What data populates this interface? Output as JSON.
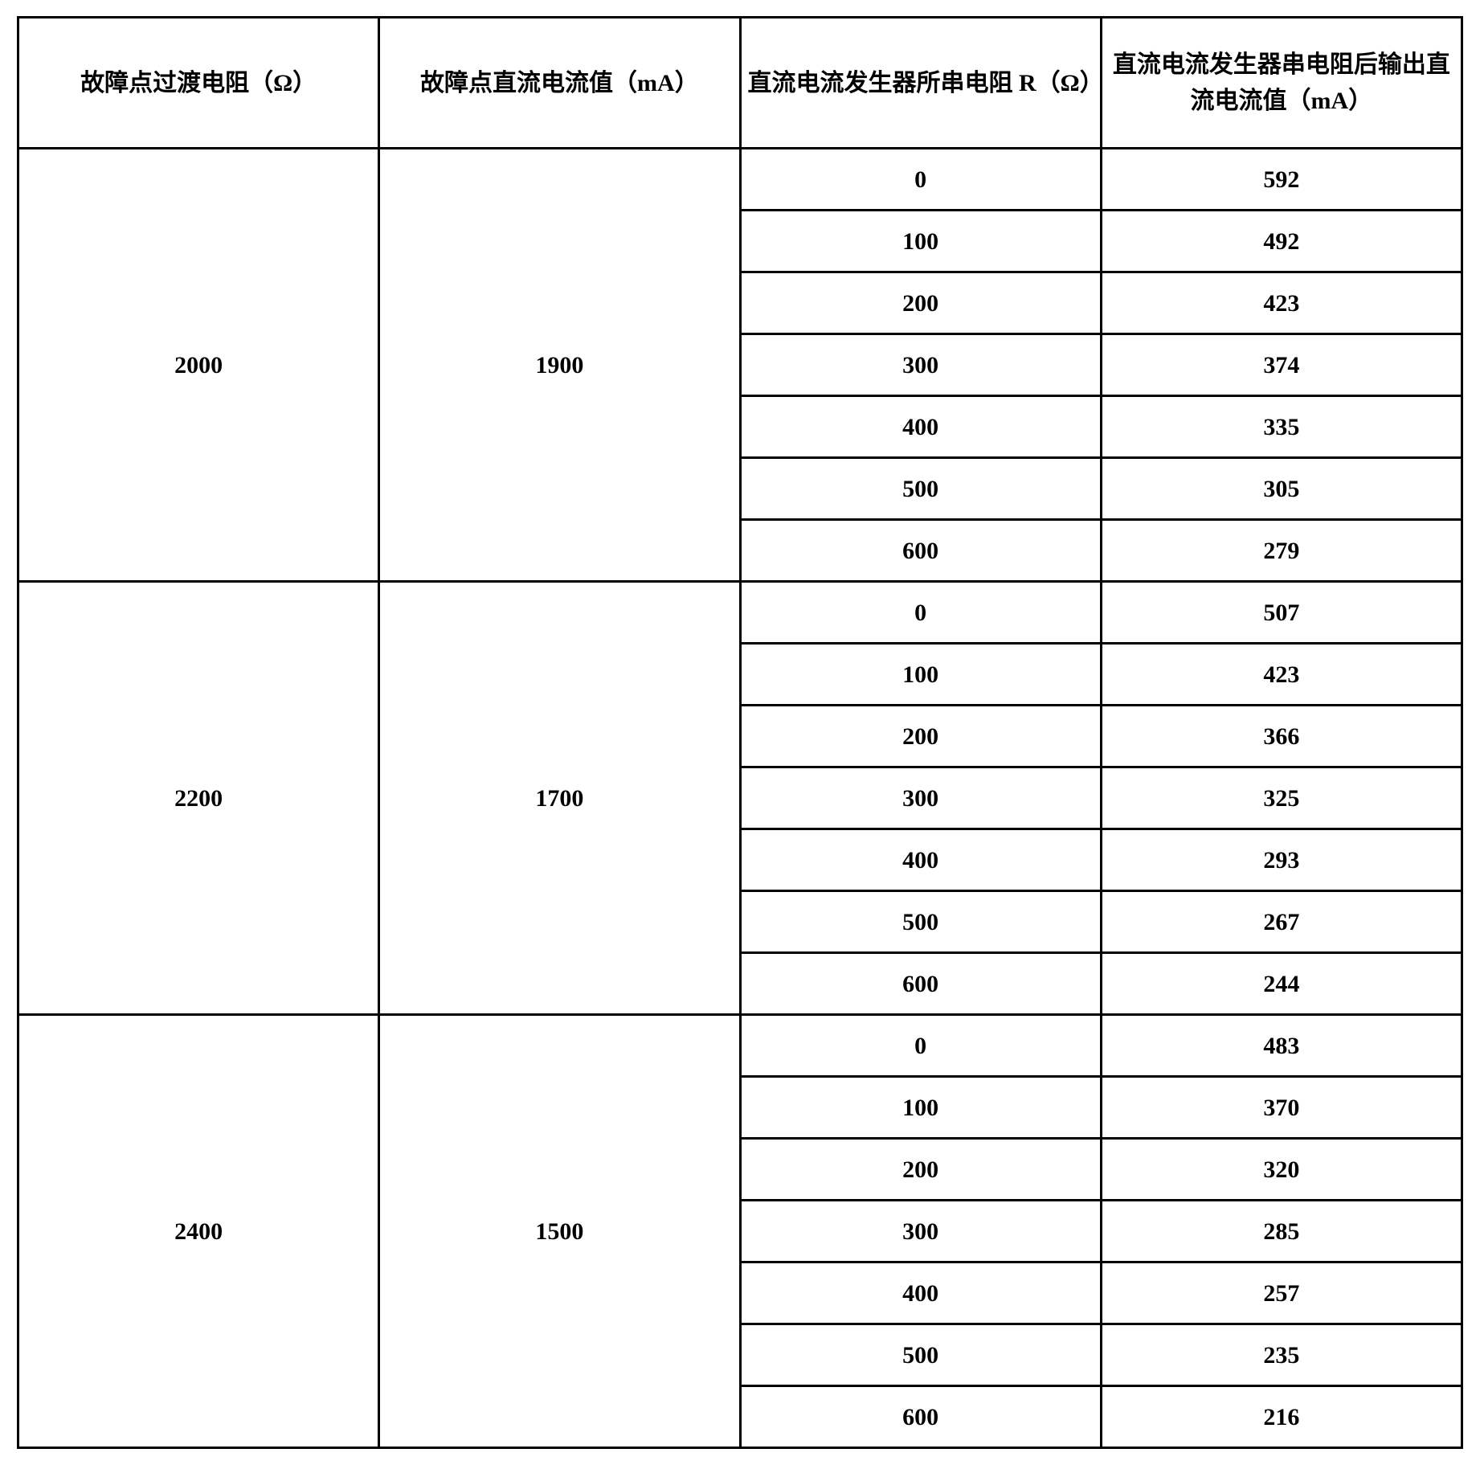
{
  "table": {
    "columns": [
      "故障点过渡电阻（Ω）",
      "故障点直流电流值（mA）",
      "直流电流发生器所串电阻 R（Ω）",
      "直流电流发生器串电阻后输出直流电流值（mA）"
    ],
    "groups": [
      {
        "c0": "2000",
        "c1": "1900",
        "rows": [
          {
            "c2": "0",
            "c3": "592"
          },
          {
            "c2": "100",
            "c3": "492"
          },
          {
            "c2": "200",
            "c3": "423"
          },
          {
            "c2": "300",
            "c3": "374"
          },
          {
            "c2": "400",
            "c3": "335"
          },
          {
            "c2": "500",
            "c3": "305"
          },
          {
            "c2": "600",
            "c3": "279"
          }
        ]
      },
      {
        "c0": "2200",
        "c1": "1700",
        "rows": [
          {
            "c2": "0",
            "c3": "507"
          },
          {
            "c2": "100",
            "c3": "423"
          },
          {
            "c2": "200",
            "c3": "366"
          },
          {
            "c2": "300",
            "c3": "325"
          },
          {
            "c2": "400",
            "c3": "293"
          },
          {
            "c2": "500",
            "c3": "267"
          },
          {
            "c2": "600",
            "c3": "244"
          }
        ]
      },
      {
        "c0": "2400",
        "c1": "1500",
        "rows": [
          {
            "c2": "0",
            "c3": "483"
          },
          {
            "c2": "100",
            "c3": "370"
          },
          {
            "c2": "200",
            "c3": "320"
          },
          {
            "c2": "300",
            "c3": "285"
          },
          {
            "c2": "400",
            "c3": "257"
          },
          {
            "c2": "500",
            "c3": "235"
          },
          {
            "c2": "600",
            "c3": "216"
          }
        ]
      }
    ]
  }
}
